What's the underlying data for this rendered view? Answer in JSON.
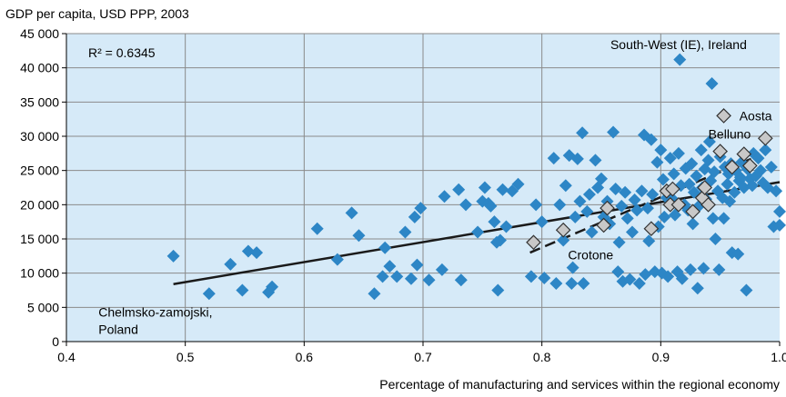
{
  "chart_data": {
    "type": "scatter",
    "ylabel": "GDP per capita, USD PPP, 2003",
    "xlabel": "Percentage of manufacturing and services within the regional economy",
    "xlim": [
      0.4,
      1.0
    ],
    "ylim": [
      0,
      45000
    ],
    "x_ticks": [
      0.4,
      0.5,
      0.6,
      0.7,
      0.8,
      0.9,
      1.0
    ],
    "x_tick_labels": [
      "0.4",
      "0.5",
      "0.6",
      "0.7",
      "0.8",
      "0.9",
      "1.0"
    ],
    "y_ticks": [
      0,
      5000,
      10000,
      15000,
      20000,
      25000,
      30000,
      35000,
      40000,
      45000
    ],
    "y_tick_labels": [
      "0",
      "5 000",
      "10 000",
      "15 000",
      "20 000",
      "25 000",
      "30 000",
      "35 000",
      "40 000",
      "45 000"
    ],
    "grid": true,
    "r2_label": "R² = 0.6345",
    "colors": {
      "regions": "#2d86c6",
      "highlighted": "#c8c8c8",
      "trend": "#1a1a1a",
      "grid": "#8a8a8a",
      "background": "#d6eaf8"
    },
    "trendline": {
      "x": [
        0.49,
        1.0
      ],
      "y": [
        8400,
        23300
      ]
    },
    "dashed_segment": {
      "x": [
        0.79,
        0.98
      ],
      "y": [
        13000,
        27000
      ]
    },
    "annotations": [
      {
        "text": "South-West (IE), Ireland",
        "x": 0.915,
        "y": 43400
      },
      {
        "text": "Aosta",
        "x": 0.96,
        "y": 33000
      },
      {
        "text": "Belluno",
        "x": 0.94,
        "y": 30300
      },
      {
        "text": "Crotone",
        "x": 0.822,
        "y": 12700
      },
      {
        "text": "Chelmsko-zamojski,",
        "x": 0.427,
        "y": 4300
      },
      {
        "text": "Poland",
        "x": 0.427,
        "y": 1800
      }
    ],
    "series": [
      {
        "name": "Regions",
        "points": [
          [
            0.49,
            12500
          ],
          [
            0.52,
            7000
          ],
          [
            0.538,
            11300
          ],
          [
            0.548,
            7500
          ],
          [
            0.553,
            13200
          ],
          [
            0.56,
            13000
          ],
          [
            0.57,
            7200
          ],
          [
            0.573,
            8000
          ],
          [
            0.611,
            16500
          ],
          [
            0.628,
            12000
          ],
          [
            0.64,
            18800
          ],
          [
            0.646,
            15500
          ],
          [
            0.659,
            7000
          ],
          [
            0.666,
            9500
          ],
          [
            0.668,
            13700
          ],
          [
            0.672,
            11000
          ],
          [
            0.678,
            9500
          ],
          [
            0.685,
            16000
          ],
          [
            0.69,
            9200
          ],
          [
            0.693,
            18200
          ],
          [
            0.695,
            11200
          ],
          [
            0.698,
            19500
          ],
          [
            0.705,
            9000
          ],
          [
            0.716,
            10500
          ],
          [
            0.718,
            21200
          ],
          [
            0.73,
            22200
          ],
          [
            0.732,
            9000
          ],
          [
            0.736,
            20000
          ],
          [
            0.746,
            16000
          ],
          [
            0.75,
            20500
          ],
          [
            0.752,
            22500
          ],
          [
            0.755,
            20200
          ],
          [
            0.757,
            19800
          ],
          [
            0.76,
            17500
          ],
          [
            0.762,
            14500
          ],
          [
            0.763,
            7500
          ],
          [
            0.765,
            14800
          ],
          [
            0.767,
            22200
          ],
          [
            0.77,
            16800
          ],
          [
            0.775,
            22000
          ],
          [
            0.78,
            23000
          ],
          [
            0.791,
            9500
          ],
          [
            0.795,
            20000
          ],
          [
            0.8,
            17500
          ],
          [
            0.802,
            9300
          ],
          [
            0.81,
            26800
          ],
          [
            0.812,
            8500
          ],
          [
            0.815,
            20000
          ],
          [
            0.818,
            14800
          ],
          [
            0.82,
            22800
          ],
          [
            0.823,
            27200
          ],
          [
            0.825,
            8500
          ],
          [
            0.826,
            10800
          ],
          [
            0.828,
            18200
          ],
          [
            0.83,
            26700
          ],
          [
            0.832,
            20500
          ],
          [
            0.834,
            30500
          ],
          [
            0.835,
            8500
          ],
          [
            0.838,
            19000
          ],
          [
            0.84,
            21500
          ],
          [
            0.842,
            16000
          ],
          [
            0.845,
            26500
          ],
          [
            0.847,
            22500
          ],
          [
            0.85,
            23800
          ],
          [
            0.852,
            18200
          ],
          [
            0.855,
            20500
          ],
          [
            0.857,
            17200
          ],
          [
            0.86,
            30600
          ],
          [
            0.862,
            22300
          ],
          [
            0.864,
            10200
          ],
          [
            0.865,
            14500
          ],
          [
            0.867,
            19800
          ],
          [
            0.868,
            8800
          ],
          [
            0.87,
            21800
          ],
          [
            0.872,
            18000
          ],
          [
            0.874,
            9100
          ],
          [
            0.876,
            16000
          ],
          [
            0.878,
            20700
          ],
          [
            0.88,
            19200
          ],
          [
            0.882,
            8500
          ],
          [
            0.884,
            22000
          ],
          [
            0.886,
            30200
          ],
          [
            0.887,
            9800
          ],
          [
            0.889,
            19500
          ],
          [
            0.89,
            14700
          ],
          [
            0.892,
            29500
          ],
          [
            0.893,
            21500
          ],
          [
            0.895,
            10200
          ],
          [
            0.897,
            26200
          ],
          [
            0.898,
            16800
          ],
          [
            0.9,
            28000
          ],
          [
            0.901,
            10000
          ],
          [
            0.902,
            23700
          ],
          [
            0.903,
            18200
          ],
          [
            0.905,
            21000
          ],
          [
            0.906,
            9500
          ],
          [
            0.908,
            26800
          ],
          [
            0.91,
            20800
          ],
          [
            0.911,
            24500
          ],
          [
            0.912,
            18500
          ],
          [
            0.914,
            10200
          ],
          [
            0.915,
            27500
          ],
          [
            0.916,
            41200
          ],
          [
            0.917,
            22800
          ],
          [
            0.918,
            9200
          ],
          [
            0.92,
            20000
          ],
          [
            0.921,
            25300
          ],
          [
            0.923,
            19200
          ],
          [
            0.924,
            23000
          ],
          [
            0.925,
            10500
          ],
          [
            0.926,
            26000
          ],
          [
            0.927,
            17200
          ],
          [
            0.928,
            21800
          ],
          [
            0.93,
            24200
          ],
          [
            0.931,
            7800
          ],
          [
            0.932,
            19800
          ],
          [
            0.934,
            28000
          ],
          [
            0.935,
            22500
          ],
          [
            0.936,
            10700
          ],
          [
            0.937,
            25200
          ],
          [
            0.938,
            20800
          ],
          [
            0.94,
            26500
          ],
          [
            0.941,
            29200
          ],
          [
            0.942,
            23500
          ],
          [
            0.943,
            37700
          ],
          [
            0.944,
            18000
          ],
          [
            0.945,
            24800
          ],
          [
            0.946,
            15000
          ],
          [
            0.948,
            22000
          ],
          [
            0.949,
            10500
          ],
          [
            0.95,
            27000
          ],
          [
            0.952,
            21000
          ],
          [
            0.953,
            18000
          ],
          [
            0.954,
            25500
          ],
          [
            0.956,
            23000
          ],
          [
            0.957,
            24500
          ],
          [
            0.958,
            20500
          ],
          [
            0.959,
            26000
          ],
          [
            0.96,
            13000
          ],
          [
            0.962,
            21800
          ],
          [
            0.963,
            25000
          ],
          [
            0.965,
            12800
          ],
          [
            0.966,
            23500
          ],
          [
            0.967,
            24000
          ],
          [
            0.968,
            26200
          ],
          [
            0.97,
            22500
          ],
          [
            0.972,
            7500
          ],
          [
            0.973,
            25200
          ],
          [
            0.975,
            23800
          ],
          [
            0.977,
            22800
          ],
          [
            0.978,
            27500
          ],
          [
            0.98,
            24200
          ],
          [
            0.982,
            26800
          ],
          [
            0.984,
            25000
          ],
          [
            0.986,
            23200
          ],
          [
            0.988,
            28000
          ],
          [
            0.99,
            22500
          ],
          [
            0.993,
            25500
          ],
          [
            0.995,
            16800
          ],
          [
            0.997,
            22000
          ],
          [
            1.0,
            19000
          ],
          [
            1.0,
            17000
          ]
        ]
      },
      {
        "name": "Highlighted regions",
        "points": [
          [
            0.793,
            14500
          ],
          [
            0.818,
            16300
          ],
          [
            0.852,
            17000
          ],
          [
            0.855,
            19500
          ],
          [
            0.892,
            16500
          ],
          [
            0.905,
            22000
          ],
          [
            0.908,
            20000
          ],
          [
            0.91,
            22300
          ],
          [
            0.915,
            20000
          ],
          [
            0.927,
            19000
          ],
          [
            0.935,
            21000
          ],
          [
            0.937,
            22500
          ],
          [
            0.94,
            20000
          ],
          [
            0.95,
            27800
          ],
          [
            0.96,
            25500
          ],
          [
            0.97,
            27400
          ],
          [
            0.975,
            25700
          ],
          [
            0.953,
            33000
          ],
          [
            0.988,
            29700
          ]
        ]
      }
    ]
  }
}
